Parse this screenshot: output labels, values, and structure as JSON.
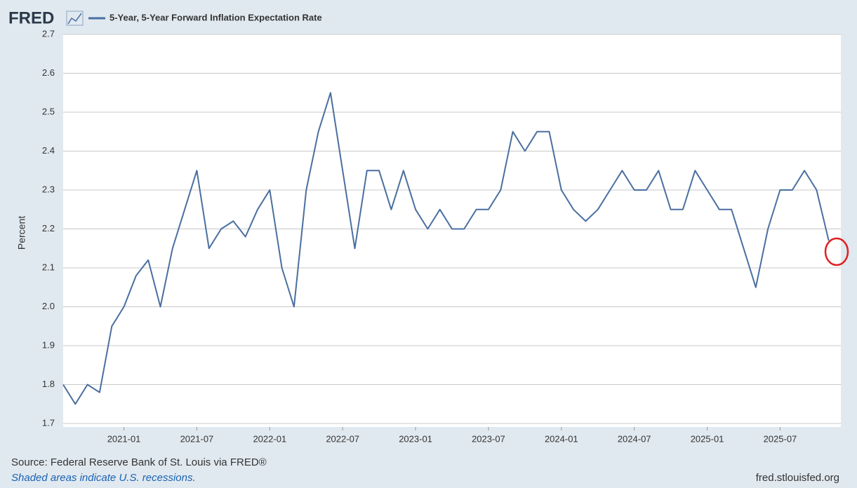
{
  "brand": "FRED",
  "source": "Source: Federal Reserve Bank of St. Louis via FRED®",
  "note": "Shaded areas indicate U.S. recessions.",
  "site": "fred.stlouisfed.org",
  "chart_data": {
    "type": "line",
    "y_label": "Percent",
    "x": [
      "2020-08",
      "2020-09",
      "2020-10",
      "2020-11",
      "2020-12",
      "2021-01",
      "2021-02",
      "2021-03",
      "2021-04",
      "2021-05",
      "2021-06",
      "2021-07",
      "2021-08",
      "2021-09",
      "2021-10",
      "2021-11",
      "2021-12",
      "2022-01",
      "2022-02",
      "2022-03",
      "2022-04",
      "2022-05",
      "2022-06",
      "2022-07",
      "2022-08",
      "2022-09",
      "2022-10",
      "2022-11",
      "2022-12",
      "2023-01",
      "2023-02",
      "2023-03",
      "2023-04",
      "2023-05",
      "2023-06",
      "2023-07",
      "2023-08",
      "2023-09",
      "2023-10",
      "2023-11",
      "2023-12",
      "2024-01",
      "2024-02",
      "2024-03",
      "2024-04",
      "2024-05",
      "2024-06",
      "2024-07",
      "2024-08",
      "2024-09",
      "2024-10",
      "2024-11",
      "2024-12",
      "2025-01",
      "2025-02",
      "2025-03",
      "2025-04",
      "2025-05",
      "2025-06",
      "2025-07",
      "2025-08",
      "2025-09",
      "2025-10",
      "2025-11"
    ],
    "series": [
      {
        "name": "5-Year, 5-Year Forward Inflation Expectation Rate",
        "color": "#4a6fa0",
        "values": [
          1.8,
          1.75,
          1.8,
          1.78,
          1.95,
          2.0,
          2.08,
          2.12,
          2.0,
          2.15,
          2.25,
          2.35,
          2.15,
          2.2,
          2.22,
          2.18,
          2.25,
          2.3,
          2.1,
          2.0,
          2.3,
          2.45,
          2.55,
          2.35,
          2.15,
          2.35,
          2.35,
          2.25,
          2.35,
          2.25,
          2.2,
          2.25,
          2.2,
          2.2,
          2.25,
          2.25,
          2.3,
          2.45,
          2.4,
          2.45,
          2.45,
          2.3,
          2.25,
          2.22,
          2.25,
          2.3,
          2.35,
          2.3,
          2.3,
          2.35,
          2.25,
          2.25,
          2.35,
          2.3,
          2.25,
          2.25,
          2.15,
          2.05,
          2.2,
          2.3,
          2.3,
          2.35,
          2.3,
          2.17
        ]
      }
    ],
    "xlim": [
      "2020-08",
      "2025-12"
    ],
    "xticks": [
      "2021-01",
      "2021-07",
      "2022-01",
      "2022-07",
      "2023-01",
      "2023-07",
      "2024-01",
      "2024-07",
      "2025-01",
      "2025-07"
    ],
    "ylim": [
      1.7,
      2.7
    ],
    "yticks": [
      1.7,
      1.8,
      1.9,
      {
        "value": 2.0,
        "label": "2.0"
      },
      2.1,
      2.2,
      2.3,
      2.4,
      2.5,
      2.6,
      2.7
    ],
    "grid": true
  }
}
